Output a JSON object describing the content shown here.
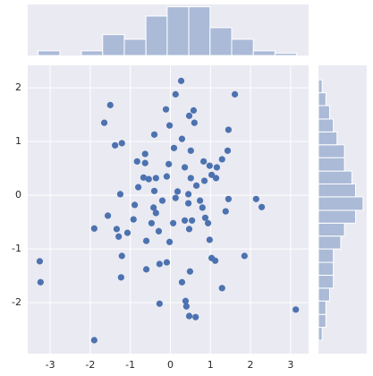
{
  "chart_data": [
    {
      "type": "scatter",
      "color": "#4c72b0",
      "grid": true,
      "xlim": [
        -3.56,
        3.45
      ],
      "ylim": [
        -2.95,
        2.42
      ],
      "xticks": [
        -3,
        -2,
        -1,
        0,
        1,
        2,
        3
      ],
      "yticks": [
        -2,
        -1,
        0,
        1,
        2
      ],
      "x": [
        0.27,
        0.13,
        1.61,
        -1.5,
        -0.11,
        0.47,
        -1.65,
        -0.02,
        -0.4,
        0.58,
        0.6,
        1.45,
        -1.38,
        -1.21,
        0.29,
        0.09,
        0.51,
        1.43,
        0.83,
        -0.63,
        -0.83,
        -0.63,
        -0.04,
        0.36,
        0.98,
        1.29,
        1.16,
        -0.67,
        -0.54,
        -0.36,
        -0.09,
        0.51,
        0.85,
        1.03,
        1.14,
        0.65,
        -0.8,
        -0.4,
        0.18,
        0.45,
        -1.25,
        0.13,
        -0.2,
        0.74,
        1.45,
        2.14,
        2.28,
        -0.89,
        -0.42,
        0.45,
        0.8,
        -0.36,
        1.38,
        -1.56,
        -0.92,
        0.36,
        0.87,
        0.54,
        -0.47,
        0.07,
        0.94,
        -1.34,
        -0.29,
        0.47,
        -1.07,
        -1.9,
        -1.29,
        -0.6,
        -0.02,
        0.98,
        -3.26,
        -1.21,
        1.03,
        1.85,
        1.12,
        -0.27,
        -0.09,
        -0.6,
        0.49,
        -1.23,
        -3.24,
        0.29,
        1.29,
        -0.27,
        0.38,
        0.4,
        3.13,
        0.47,
        0.63,
        -1.9
      ],
      "y": [
        2.13,
        1.88,
        1.88,
        1.68,
        1.6,
        1.48,
        1.35,
        1.3,
        1.13,
        1.58,
        1.35,
        1.22,
        0.93,
        0.97,
        1.05,
        0.88,
        0.83,
        0.83,
        0.63,
        0.77,
        0.63,
        0.6,
        0.58,
        0.52,
        0.55,
        0.67,
        0.52,
        0.33,
        0.3,
        0.32,
        0.35,
        0.32,
        0.27,
        0.38,
        0.32,
        0.18,
        0.15,
        0.08,
        0.07,
        0.02,
        0.02,
        -0.05,
        -0.1,
        -0.1,
        -0.07,
        -0.07,
        -0.22,
        -0.18,
        -0.23,
        -0.15,
        -0.23,
        -0.33,
        -0.3,
        -0.38,
        -0.45,
        -0.47,
        -0.42,
        -0.47,
        -0.52,
        -0.52,
        -0.52,
        -0.63,
        -0.67,
        -0.63,
        -0.7,
        -0.62,
        -0.77,
        -0.85,
        -0.87,
        -0.83,
        -1.23,
        -1.13,
        -1.17,
        -1.13,
        -1.22,
        -1.28,
        -1.25,
        -1.38,
        -1.42,
        -1.53,
        -1.62,
        -1.62,
        -1.73,
        -2.02,
        -1.97,
        -2.07,
        -2.13,
        -2.25,
        -2.27,
        -2.7
      ]
    },
    {
      "type": "histogram",
      "orientation": "vertical",
      "color": "#4c72b0",
      "xlim": [
        -3.56,
        3.45
      ],
      "ylim": [
        0,
        22
      ],
      "bins": [
        -3.3,
        -2.76,
        -2.22,
        -1.69,
        -1.15,
        -0.61,
        -0.08,
        0.46,
        0.99,
        1.53,
        2.07,
        2.61,
        3.15
      ],
      "values": [
        2,
        0,
        2,
        9,
        7,
        17,
        21,
        21,
        12,
        7,
        2,
        1
      ]
    },
    {
      "type": "histogram",
      "orientation": "horizontal",
      "color": "#4c72b0",
      "xlim": [
        0,
        13
      ],
      "ylim": [
        -2.95,
        2.42
      ],
      "bins": [
        -2.7,
        -2.46,
        -2.22,
        -1.97,
        -1.73,
        -1.49,
        -1.25,
        -1.0,
        -0.76,
        -0.52,
        -0.28,
        -0.03,
        0.21,
        0.45,
        0.7,
        0.94,
        1.18,
        1.42,
        1.67,
        1.91,
        2.15
      ],
      "values": [
        1,
        2,
        2,
        3,
        4,
        4,
        4,
        6,
        7,
        10,
        12,
        10,
        9,
        7,
        7,
        5,
        4,
        3,
        2,
        1
      ]
    }
  ]
}
